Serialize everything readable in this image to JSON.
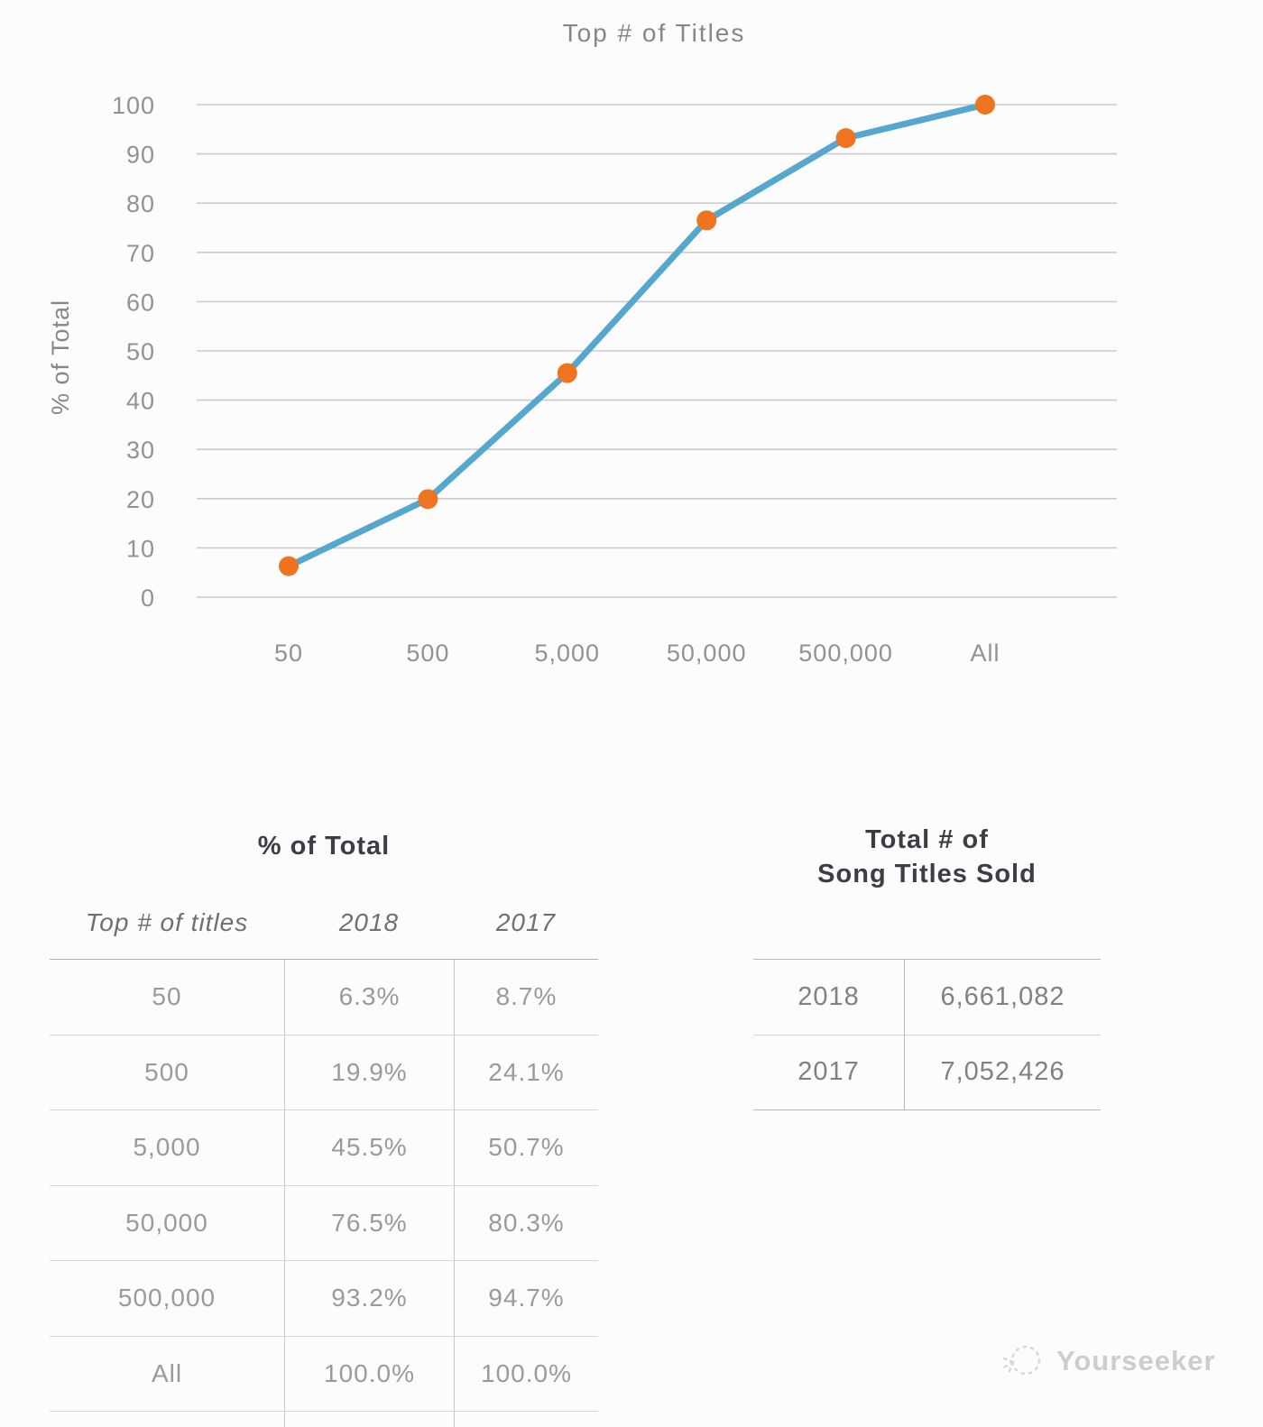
{
  "page": {
    "background": "#fcfcfc"
  },
  "chart_data": {
    "type": "line",
    "title": "Top # of Titles",
    "xlabel": "",
    "ylabel": "% of Total",
    "categories": [
      "50",
      "500",
      "5,000",
      "50,000",
      "500,000",
      "All"
    ],
    "series": [
      {
        "name": "2018",
        "values": [
          6.3,
          19.9,
          45.5,
          76.5,
          93.2,
          100.0
        ]
      }
    ],
    "ylim": [
      0,
      100
    ],
    "ytick_step": 10,
    "grid": true,
    "legend": "none",
    "line_color": "#55a7cd",
    "marker_color": "#ef7420",
    "gridline_color": "#c9cbcd",
    "tick_color": "#8f9296",
    "title_color": "#85878a"
  },
  "percent_table": {
    "title": "% of Total",
    "columns": [
      "Top # of titles",
      "2018",
      "2017"
    ],
    "rows": [
      [
        "50",
        "6.3%",
        "8.7%"
      ],
      [
        "500",
        "19.9%",
        "24.1%"
      ],
      [
        "5,000",
        "45.5%",
        "50.7%"
      ],
      [
        "50,000",
        "76.5%",
        "80.3%"
      ],
      [
        "500,000",
        "93.2%",
        "94.7%"
      ],
      [
        "All",
        "100.0%",
        "100.0%"
      ]
    ]
  },
  "totals_table": {
    "title_line1": "Total # of",
    "title_line2": "Song Titles Sold",
    "rows": [
      [
        "2018",
        "6,661,082"
      ],
      [
        "2017",
        "7,052,426"
      ]
    ]
  },
  "watermark": {
    "label": "Yourseeker",
    "color": "#cbcdcf"
  }
}
